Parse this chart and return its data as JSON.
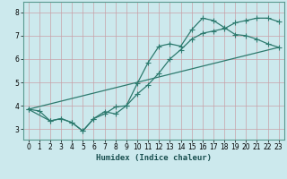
{
  "xlabel": "Humidex (Indice chaleur)",
  "bg_color": "#cce9ed",
  "line_color": "#2d7a6e",
  "grid_color": "#b0d8dc",
  "xlim": [
    -0.5,
    23.5
  ],
  "ylim": [
    2.55,
    8.45
  ],
  "xticks": [
    0,
    1,
    2,
    3,
    4,
    5,
    6,
    7,
    8,
    9,
    10,
    11,
    12,
    13,
    14,
    15,
    16,
    17,
    18,
    19,
    20,
    21,
    22,
    23
  ],
  "yticks": [
    3,
    4,
    5,
    6,
    7,
    8
  ],
  "line1_x": [
    0,
    1,
    2,
    3,
    4,
    5,
    6,
    7,
    8,
    9,
    10,
    11,
    12,
    13,
    14,
    15,
    16,
    17,
    18,
    19,
    20,
    21,
    22,
    23
  ],
  "line1_y": [
    3.85,
    3.78,
    3.35,
    3.45,
    3.28,
    2.92,
    3.45,
    3.75,
    3.65,
    4.0,
    4.95,
    5.85,
    6.55,
    6.65,
    6.55,
    7.25,
    7.75,
    7.65,
    7.35,
    7.05,
    7.0,
    6.85,
    6.65,
    6.5
  ],
  "line2_x": [
    0,
    2,
    3,
    4,
    5,
    6,
    7,
    8,
    9,
    10,
    11,
    12,
    13,
    14,
    15,
    16,
    17,
    18,
    19,
    20,
    21,
    22,
    23
  ],
  "line2_y": [
    3.85,
    3.35,
    3.45,
    3.28,
    2.92,
    3.45,
    3.65,
    3.95,
    4.0,
    4.5,
    4.9,
    5.4,
    6.0,
    6.4,
    6.85,
    7.1,
    7.2,
    7.3,
    7.55,
    7.65,
    7.75,
    7.75,
    7.6
  ],
  "line3_x": [
    0,
    23
  ],
  "line3_y": [
    3.85,
    6.5
  ],
  "markersize": 2.2,
  "tick_fontsize": 5.5,
  "xlabel_fontsize": 6.5
}
